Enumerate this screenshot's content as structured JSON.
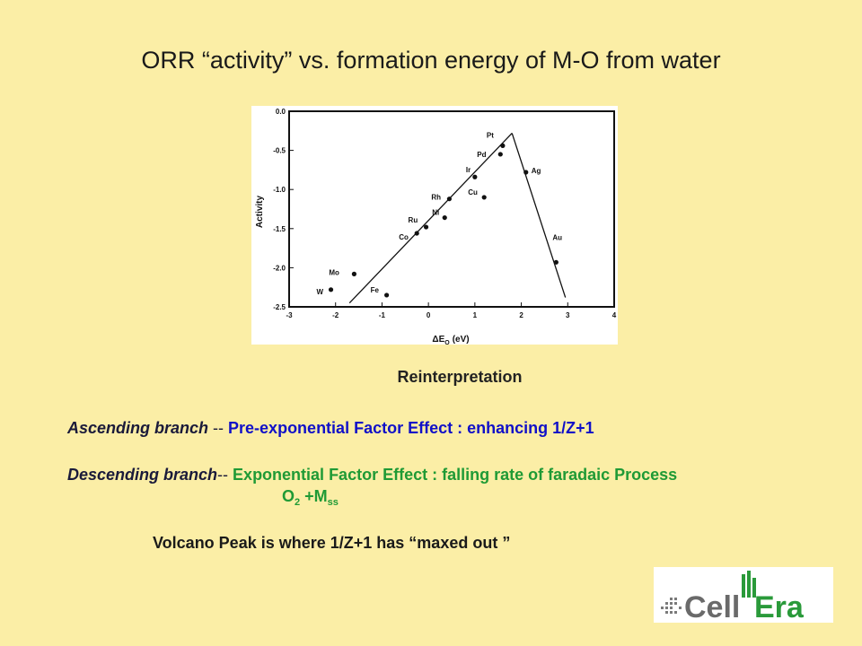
{
  "title": "ORR “activity” vs. formation energy of M-O from water",
  "chart_data": {
    "type": "scatter",
    "xlabel": "ΔE",
    "xlabel_sub": "O",
    "xlabel_unit": "(eV)",
    "ylabel": "Activity",
    "xlim": [
      -3,
      4
    ],
    "ylim": [
      -2.5,
      0.0
    ],
    "xticks": [
      "-3",
      "-2",
      "-1",
      "0",
      "1",
      "2",
      "3",
      "4"
    ],
    "yticks": [
      "0.0",
      "-0.5",
      "-1.0",
      "-1.5",
      "-2.0",
      "-2.5"
    ],
    "points": [
      {
        "label": "W",
        "x": -2.1,
        "y": -2.28
      },
      {
        "label": "Mo",
        "x": -1.6,
        "y": -2.08
      },
      {
        "label": "Fe",
        "x": -0.9,
        "y": -2.35
      },
      {
        "label": "Co",
        "x": -0.25,
        "y": -1.56
      },
      {
        "label": "Ru",
        "x": -0.05,
        "y": -1.48
      },
      {
        "label": "Ni",
        "x": 0.35,
        "y": -1.36
      },
      {
        "label": "Rh",
        "x": 0.45,
        "y": -1.12
      },
      {
        "label": "Cu",
        "x": 1.2,
        "y": -1.1
      },
      {
        "label": "Ir",
        "x": 1.0,
        "y": -0.84
      },
      {
        "label": "Pd",
        "x": 1.55,
        "y": -0.55
      },
      {
        "label": "Pt",
        "x": 1.6,
        "y": -0.44
      },
      {
        "label": "Ag",
        "x": 2.1,
        "y": -0.78
      },
      {
        "label": "Au",
        "x": 2.75,
        "y": -1.93
      }
    ],
    "trend_lines": [
      {
        "x": [
          -1.7,
          1.8
        ],
        "y": [
          -2.45,
          -0.28
        ]
      },
      {
        "x": [
          1.8,
          2.95
        ],
        "y": [
          -0.28,
          -2.38
        ]
      }
    ]
  },
  "heading": "Reinterpretation",
  "ascending": {
    "lead": "Ascending  branch",
    "sep": " -- ",
    "text": "Pre-exponential Factor Effect : enhancing  1/Z+1"
  },
  "descending": {
    "lead": "Descending branch",
    "sep": "-- ",
    "text": "Exponential Factor Effect : falling rate of  faradaic Process",
    "o2": "O",
    "o2_sub": "2",
    "plus_m": " +M",
    "m_sub": "ss"
  },
  "peak_text": "Volcano Peak  is where  1/Z+1 has “maxed out ”",
  "logo": {
    "text": "CellEra",
    "colors": {
      "cell": "#6a6a6a",
      "era": "#2a9a3a"
    }
  }
}
